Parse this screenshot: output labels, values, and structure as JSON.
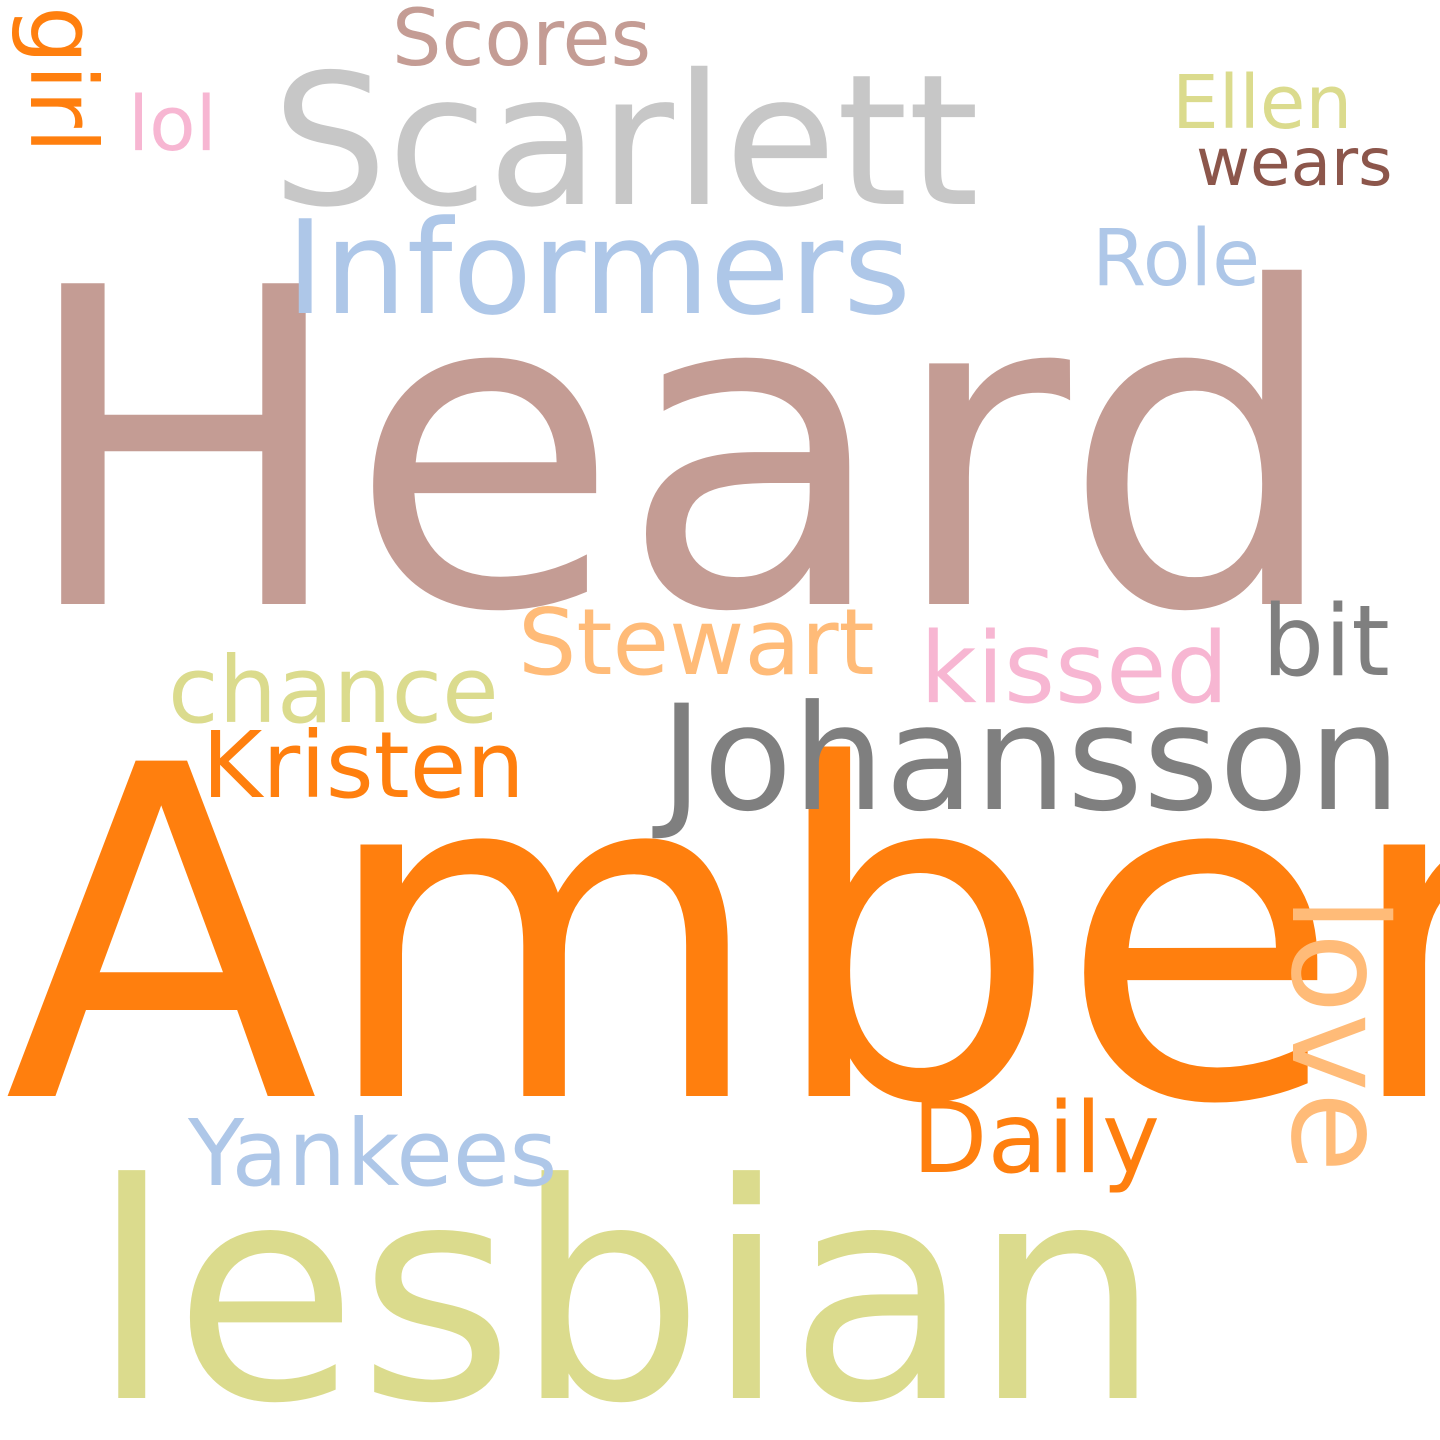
{
  "words": {
    "heard": {
      "text": "Heard",
      "color": "#c49c94"
    },
    "amber": {
      "text": "Amber",
      "color": "#ff7f0e"
    },
    "lesbian": {
      "text": "lesbian",
      "color": "#dbdb8d"
    },
    "scarlett": {
      "text": "Scarlett",
      "color": "#c7c7c7"
    },
    "johansson": {
      "text": "Johansson",
      "color": "#7f7f7f"
    },
    "informers": {
      "text": "Informers",
      "color": "#aec7e8"
    },
    "stewart": {
      "text": "Stewart",
      "color": "#ffbb78"
    },
    "kissed": {
      "text": "kissed",
      "color": "#f7b6d2"
    },
    "chance": {
      "text": "chance",
      "color": "#dbdb8d"
    },
    "kristen": {
      "text": "Kristen",
      "color": "#ff7f0e"
    },
    "bit": {
      "text": "bit",
      "color": "#7f7f7f"
    },
    "love": {
      "text": "love",
      "color": "#ffbb78"
    },
    "yankees": {
      "text": "Yankees",
      "color": "#aec7e8"
    },
    "daily": {
      "text": "Daily",
      "color": "#ff7f0e"
    },
    "scores": {
      "text": "Scores",
      "color": "#c49c94"
    },
    "role": {
      "text": "Role",
      "color": "#aec7e8"
    },
    "ellen": {
      "text": "Ellen",
      "color": "#dbdb8d"
    },
    "wears": {
      "text": "wears",
      "color": "#8c564b"
    },
    "lol": {
      "text": "lol",
      "color": "#f7b6d2"
    },
    "girl": {
      "text": "girl",
      "color": "#ff7f0e"
    }
  }
}
